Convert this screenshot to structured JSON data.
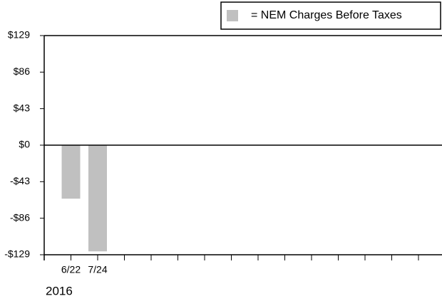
{
  "chart_data": {
    "type": "bar",
    "categories": [
      "6/22",
      "7/24",
      null,
      null,
      null,
      null,
      null,
      null,
      null,
      null,
      null,
      null,
      null,
      null
    ],
    "series": [
      {
        "name": "= NEM Charges Before Taxes",
        "color": "#c0c0c0",
        "values": [
          -63,
          -125,
          null,
          null,
          null,
          null,
          null,
          null,
          null,
          null,
          null,
          null,
          null,
          null
        ]
      }
    ],
    "x_group_label": "2016",
    "ylim": [
      -129,
      129
    ],
    "yticks": [
      {
        "value": -129,
        "label": "-$129"
      },
      {
        "value": -86,
        "label": "-$86"
      },
      {
        "value": -43,
        "label": "-$43"
      },
      {
        "value": 0,
        "label": "$0"
      },
      {
        "value": 43,
        "label": "$43"
      },
      {
        "value": 86,
        "label": "$86"
      },
      {
        "value": 129,
        "label": "$129"
      }
    ],
    "grid": false,
    "legend": "top-right"
  }
}
